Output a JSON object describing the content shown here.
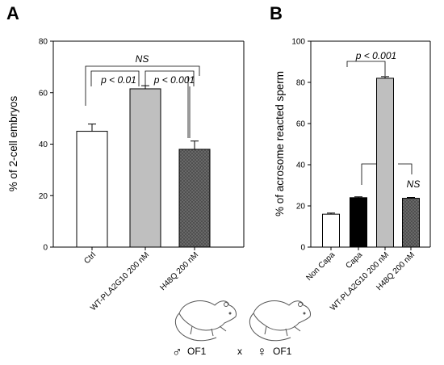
{
  "chart_data": [
    {
      "type": "bar",
      "panel": "A",
      "ylabel": "% of 2-cell embryos",
      "ylim": [
        0,
        80
      ],
      "yticks": [
        0,
        20,
        40,
        60,
        80
      ],
      "categories": [
        "Ctrl",
        "WT-PLA2G10 200 nM",
        "H48Q 200 nM"
      ],
      "values": [
        45,
        61.5,
        38
      ],
      "errors": [
        2.8,
        1.2,
        3.2
      ],
      "colors": [
        "#ffffff",
        "#bfbfbf",
        "#6e6e6e"
      ],
      "annotations": [
        "NS",
        "p < 0.01",
        "p < 0.001"
      ]
    },
    {
      "type": "bar",
      "panel": "B",
      "ylabel": "% of acrosome reacted sperm",
      "ylim": [
        0,
        100
      ],
      "yticks": [
        0,
        20,
        40,
        60,
        80,
        100
      ],
      "categories": [
        "Non Capa",
        "Capa",
        "WT-PLA2G10 200 nM",
        "H48Q 200 nM"
      ],
      "values": [
        16,
        24,
        82,
        23.7
      ],
      "errors": [
        0.5,
        0.4,
        0.8,
        0.4
      ],
      "colors": [
        "#ffffff",
        "#000000",
        "#bfbfbf",
        "#6e6e6e"
      ],
      "annotations": [
        "p < 0.001",
        "NS"
      ]
    }
  ],
  "cross": {
    "male_symbol": "♂",
    "male_label": "OF1",
    "times": "x",
    "female_symbol": "♀",
    "female_label": "OF1"
  }
}
